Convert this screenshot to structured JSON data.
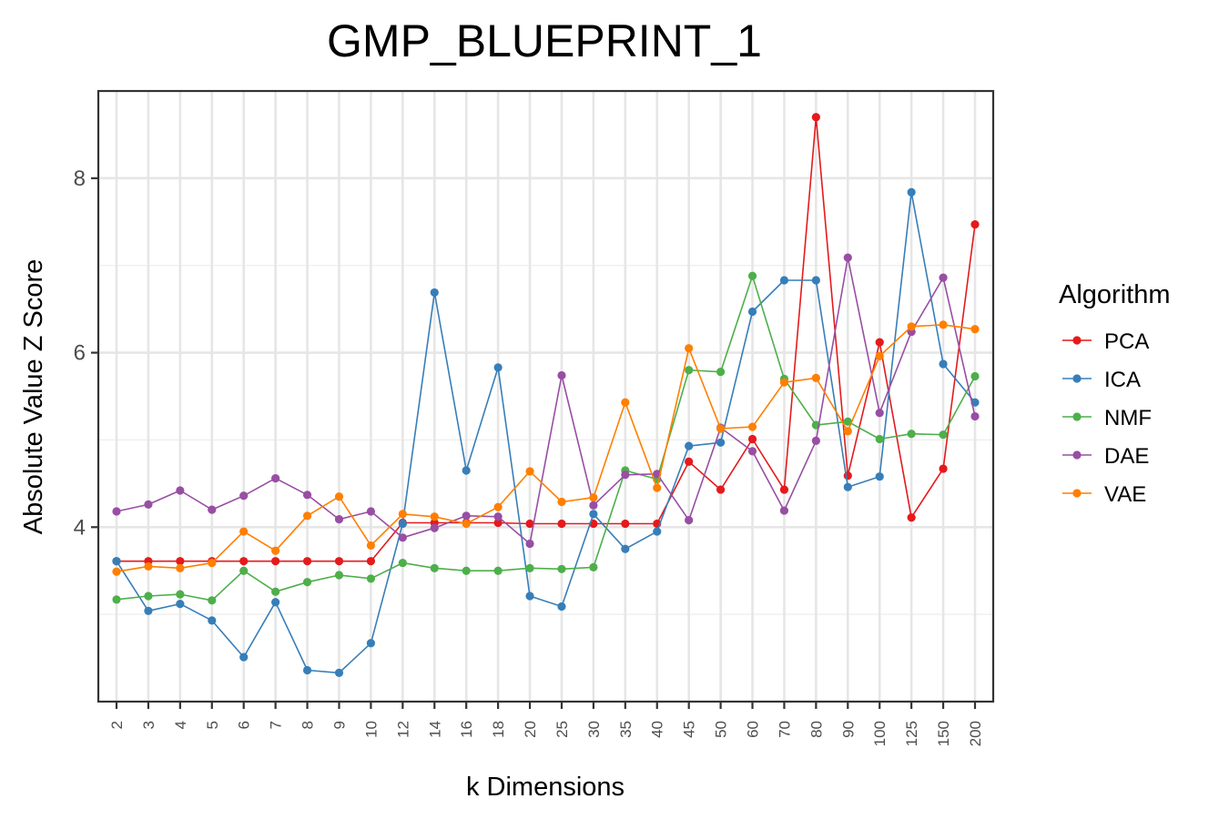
{
  "chart_data": {
    "type": "line",
    "title": "GMP_BLUEPRINT_1",
    "xlabel": "k Dimensions",
    "ylabel": "Absolute Value Z Score",
    "categories": [
      "2",
      "3",
      "4",
      "5",
      "6",
      "7",
      "8",
      "9",
      "10",
      "12",
      "14",
      "16",
      "18",
      "20",
      "25",
      "30",
      "35",
      "40",
      "45",
      "50",
      "60",
      "70",
      "80",
      "90",
      "100",
      "125",
      "150",
      "200"
    ],
    "ylim": [
      2.0,
      9.0
    ],
    "yticks": [
      4,
      6,
      8
    ],
    "ytick_labels": [
      "4",
      "6",
      "8"
    ],
    "grid": true,
    "legend": {
      "title": "Algorithm",
      "position": "right"
    },
    "series": [
      {
        "name": "PCA",
        "color": "#E41A1C",
        "values": [
          3.61,
          3.61,
          3.61,
          3.61,
          3.61,
          3.61,
          3.61,
          3.61,
          3.61,
          4.05,
          4.05,
          4.05,
          4.05,
          4.04,
          4.04,
          4.04,
          4.04,
          4.04,
          4.75,
          4.43,
          5.01,
          4.43,
          8.7,
          4.59,
          6.12,
          4.11,
          4.67,
          7.47
        ]
      },
      {
        "name": "ICA",
        "color": "#377EB8",
        "values": [
          3.61,
          3.04,
          3.12,
          2.93,
          2.51,
          3.14,
          2.36,
          2.33,
          2.67,
          4.04,
          6.69,
          4.65,
          5.83,
          3.21,
          3.09,
          4.15,
          3.75,
          3.95,
          4.93,
          4.97,
          6.47,
          6.83,
          6.83,
          4.46,
          4.58,
          7.84,
          5.87,
          5.43
        ]
      },
      {
        "name": "NMF",
        "color": "#4DAF4A",
        "values": [
          3.17,
          3.21,
          3.23,
          3.16,
          3.5,
          3.26,
          3.37,
          3.45,
          3.41,
          3.59,
          3.53,
          3.5,
          3.5,
          3.53,
          3.52,
          3.54,
          4.65,
          4.55,
          5.8,
          5.78,
          6.88,
          5.7,
          5.17,
          5.21,
          5.01,
          5.07,
          5.06,
          5.73
        ]
      },
      {
        "name": "DAE",
        "color": "#984EA3",
        "values": [
          4.18,
          4.26,
          4.42,
          4.2,
          4.36,
          4.56,
          4.37,
          4.09,
          4.18,
          3.88,
          3.99,
          4.13,
          4.12,
          3.81,
          5.74,
          4.25,
          4.6,
          4.61,
          4.08,
          5.14,
          4.87,
          4.19,
          4.99,
          7.09,
          5.31,
          6.24,
          6.86,
          5.27
        ]
      },
      {
        "name": "VAE",
        "color": "#FF7F00",
        "values": [
          3.49,
          3.55,
          3.53,
          3.59,
          3.95,
          3.73,
          4.13,
          4.35,
          3.79,
          4.15,
          4.12,
          4.04,
          4.23,
          4.64,
          4.29,
          4.34,
          5.43,
          4.45,
          6.05,
          5.13,
          5.15,
          5.66,
          5.71,
          5.1,
          5.96,
          6.3,
          6.32,
          6.27
        ]
      }
    ]
  }
}
